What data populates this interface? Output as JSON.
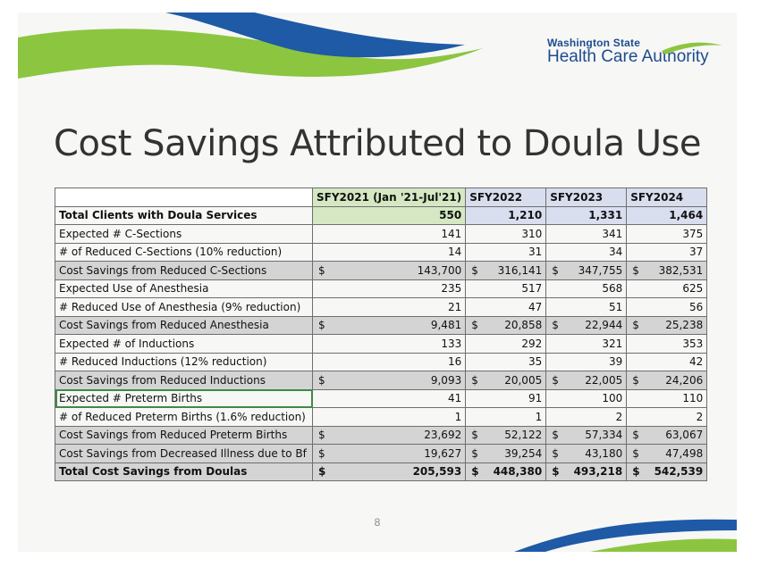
{
  "logo": {
    "line1": "Washington State",
    "line2": "Health Care Authority"
  },
  "title": "Cost Savings Attributed to Doula Use",
  "table": {
    "headers": [
      "",
      "SFY2021 (Jan '21-Jul'21)",
      "SFY2022",
      "SFY2023",
      "SFY2024"
    ],
    "currency_symbol": "$",
    "rows": [
      {
        "label": "Total Clients with Doula Services",
        "money": false,
        "values": [
          "550",
          "1,210",
          "1,331",
          "1,464"
        ]
      },
      {
        "label": "Expected # C-Sections",
        "money": false,
        "values": [
          "141",
          "310",
          "341",
          "375"
        ]
      },
      {
        "label": "# of Reduced C-Sections (10% reduction)",
        "money": false,
        "values": [
          "14",
          "31",
          "34",
          "37"
        ]
      },
      {
        "label": "Cost Savings from Reduced C-Sections",
        "money": true,
        "values": [
          "143,700",
          "316,141",
          "347,755",
          "382,531"
        ]
      },
      {
        "label": "Expected Use of Anesthesia",
        "money": false,
        "values": [
          "235",
          "517",
          "568",
          "625"
        ]
      },
      {
        "label": "# Reduced Use of Anesthesia (9% reduction)",
        "money": false,
        "values": [
          "21",
          "47",
          "51",
          "56"
        ]
      },
      {
        "label": "Cost Savings from Reduced Anesthesia",
        "money": true,
        "values": [
          "9,481",
          "20,858",
          "22,944",
          "25,238"
        ]
      },
      {
        "label": "Expected # of Inductions",
        "money": false,
        "values": [
          "133",
          "292",
          "321",
          "353"
        ]
      },
      {
        "label": "# Reduced Inductions (12% reduction)",
        "money": false,
        "values": [
          "16",
          "35",
          "39",
          "42"
        ]
      },
      {
        "label": "Cost Savings from Reduced Inductions",
        "money": true,
        "values": [
          "9,093",
          "20,005",
          "22,005",
          "24,206"
        ]
      },
      {
        "label": "Expected # Preterm Births",
        "money": false,
        "values": [
          "41",
          "91",
          "100",
          "110"
        ]
      },
      {
        "label": "# of Reduced Preterm Births (1.6% reduction)",
        "money": false,
        "values": [
          "1",
          "1",
          "2",
          "2"
        ]
      },
      {
        "label": "Cost Savings from Reduced Preterm Births",
        "money": true,
        "values": [
          "23,692",
          "52,122",
          "57,334",
          "63,067"
        ]
      },
      {
        "label": "Cost Savings from Decreased Illness due to Bf",
        "money": true,
        "values": [
          "19,627",
          "39,254",
          "43,180",
          "47,498"
        ]
      },
      {
        "label": "Total Cost Savings from Doulas",
        "money": true,
        "values": [
          "205,593",
          "448,380",
          "493,218",
          "542,539"
        ]
      }
    ]
  },
  "page_number": "8",
  "colors": {
    "swoosh_green": "#8cc540",
    "swoosh_blue": "#1e5aa6",
    "shaded_row": "#d4d4d4",
    "header_green": "#d5e8c3",
    "header_blue": "#d9deef",
    "selection_outline": "#3f8a46"
  }
}
